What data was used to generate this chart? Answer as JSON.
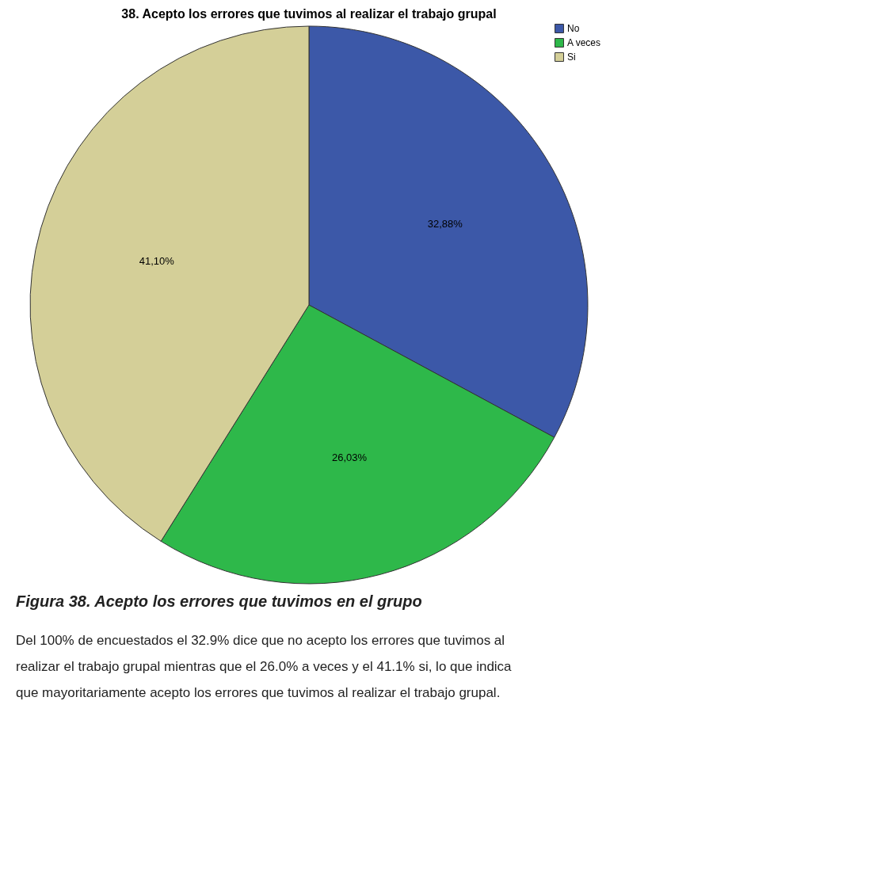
{
  "chart_data": {
    "type": "pie",
    "title": "38.  Acepto los errores que tuvimos al realizar el trabajo grupal",
    "categories": [
      "No",
      "A veces",
      "Si"
    ],
    "values": [
      32.88,
      26.03,
      41.1
    ],
    "colors": [
      "#3c58a8",
      "#2eb84a",
      "#d4cf98"
    ],
    "value_labels": [
      "32,88%",
      "26,03%",
      "41,10%"
    ],
    "legend": "top right",
    "annotations": [
      "Figura 38. Acepto los errores que tuvimos en el grupo",
      "Del 100% de encuestados el 32.9%  dice que no acepto los errores que tuvimos al realizar el trabajo grupal mientras que el 26.0% a veces y el 41.1% si, lo que indica que mayoritariamente acepto los errores que tuvimos al realizar el trabajo grupal."
    ]
  }
}
